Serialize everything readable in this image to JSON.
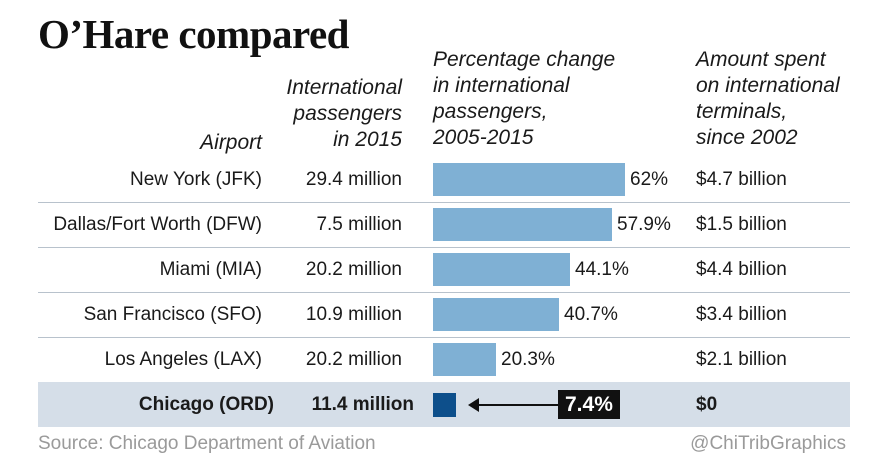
{
  "title": "O’Hare compared",
  "headers": {
    "airport": "Airport",
    "passengers": "International\npassengers\nin 2015",
    "pct_change": "Percentage change\nin international\npassengers,\n2005-2015",
    "spent": "Amount spent\non international\nterminals,\nsince 2002"
  },
  "colors": {
    "bar": "#7fb0d4",
    "highlight_bar": "#0d4f8b",
    "highlight_row": "#d5dee8",
    "callout_bg": "#111111"
  },
  "chart_data": {
    "type": "table",
    "columns": [
      "Airport",
      "International passengers in 2015",
      "Percentage change in international passengers, 2005-2015",
      "Amount spent on international terminals, since 2002"
    ],
    "rows": [
      {
        "airport": "New York (JFK)",
        "passengers": "29.4 million",
        "pct": 62,
        "pct_label": "62%",
        "spent": "$4.7 billion",
        "highlight": false
      },
      {
        "airport": "Dallas/Fort Worth (DFW)",
        "passengers": "7.5 million",
        "pct": 57.9,
        "pct_label": "57.9%",
        "spent": "$1.5 billion",
        "highlight": false
      },
      {
        "airport": "Miami (MIA)",
        "passengers": "20.2 million",
        "pct": 44.1,
        "pct_label": "44.1%",
        "spent": "$4.4 billion",
        "highlight": false
      },
      {
        "airport": "San Francisco (SFO)",
        "passengers": "10.9 million",
        "pct": 40.7,
        "pct_label": "40.7%",
        "spent": "$3.4 billion",
        "highlight": false
      },
      {
        "airport": "Los Angeles (LAX)",
        "passengers": "20.2 million",
        "pct": 20.3,
        "pct_label": "20.3%",
        "spent": "$2.1 billion",
        "highlight": false
      },
      {
        "airport": "Chicago (ORD)",
        "passengers": "11.4 million",
        "pct": 7.4,
        "pct_label": "7.4%",
        "spent": "$0",
        "highlight": true
      }
    ],
    "bar_max": 62
  },
  "footer": {
    "source": "Source: Chicago Department of Aviation",
    "credit": "@ChiTribGraphics"
  }
}
